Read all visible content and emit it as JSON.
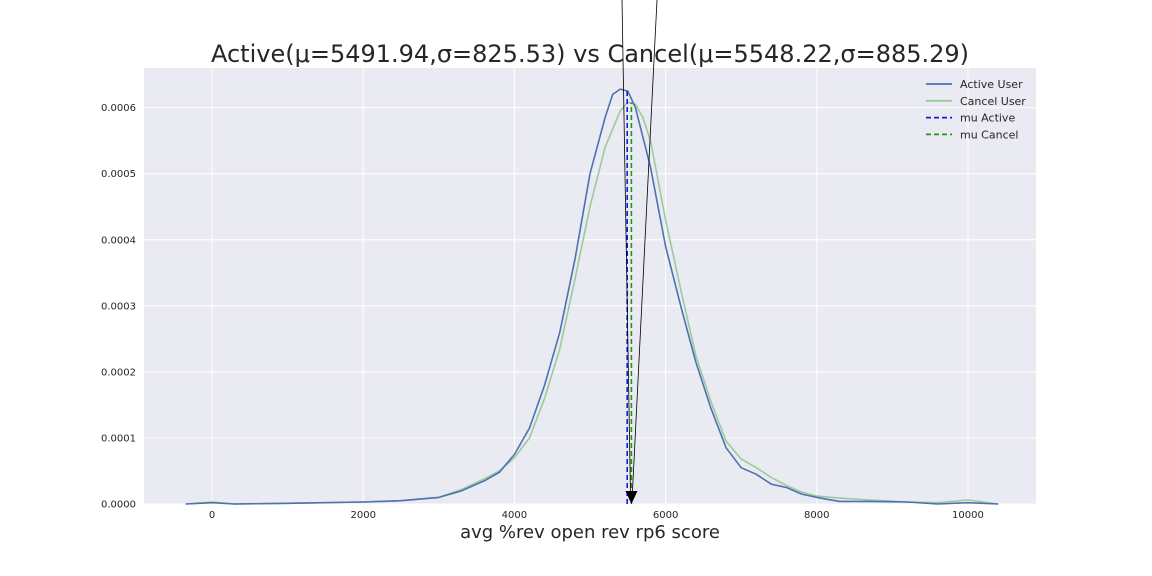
{
  "chart_data": {
    "type": "line",
    "title": "Active(μ=5491.94,σ=825.53) vs Cancel(μ=5548.22,σ=885.29)",
    "xlabel": "avg %rev open rev rp6 score",
    "ylabel": "",
    "xlim": [
      -900,
      10900
    ],
    "ylim": [
      0,
      0.00066
    ],
    "x_ticks": [
      0,
      2000,
      4000,
      6000,
      8000,
      10000
    ],
    "x_tick_labels": [
      "0",
      "2000",
      "4000",
      "6000",
      "8000",
      "10000"
    ],
    "y_ticks": [
      0,
      0.0001,
      0.0002,
      0.0003,
      0.0004,
      0.0005,
      0.0006
    ],
    "y_tick_labels": [
      "0.0000",
      "0.0001",
      "0.0002",
      "0.0003",
      "0.0004",
      "0.0005",
      "0.0006"
    ],
    "grid": true,
    "legend_position": "top-right",
    "series": [
      {
        "name": "Active User",
        "color": "#4c72b0",
        "style": "solid",
        "x": [
          -350,
          0,
          300,
          1000,
          2000,
          2500,
          3000,
          3300,
          3600,
          3800,
          4000,
          4200,
          4400,
          4600,
          4800,
          5000,
          5200,
          5300,
          5400,
          5500,
          5600,
          5800,
          6000,
          6200,
          6400,
          6600,
          6800,
          7000,
          7200,
          7400,
          7600,
          7800,
          8000,
          8300,
          8700,
          9200,
          9600,
          10000,
          10400
        ],
        "y": [
          0,
          2e-06,
          0,
          1e-06,
          3e-06,
          5e-06,
          1e-05,
          2e-05,
          3.5e-05,
          4.8e-05,
          7.5e-05,
          0.000115,
          0.00018,
          0.00026,
          0.00037,
          0.0005,
          0.000585,
          0.00062,
          0.000628,
          0.000625,
          0.0006,
          0.00051,
          0.00039,
          0.0003,
          0.000215,
          0.000145,
          8.5e-05,
          5.5e-05,
          4.5e-05,
          3e-05,
          2.5e-05,
          1.5e-05,
          1e-05,
          4e-06,
          4e-06,
          3e-06,
          0,
          2e-06,
          0
        ]
      },
      {
        "name": "Cancel User",
        "color": "#9bcb9b",
        "style": "solid",
        "x": [
          -350,
          0,
          300,
          1000,
          2000,
          2500,
          3000,
          3300,
          3600,
          3800,
          4000,
          4200,
          4400,
          4600,
          4800,
          5000,
          5200,
          5400,
          5500,
          5600,
          5700,
          5800,
          6000,
          6200,
          6400,
          6600,
          6800,
          7000,
          7200,
          7400,
          7600,
          7800,
          8000,
          8300,
          8700,
          9200,
          9600,
          10000,
          10400
        ],
        "y": [
          0,
          3e-06,
          0,
          1e-06,
          3e-06,
          5e-06,
          1e-05,
          2.2e-05,
          3.8e-05,
          5e-05,
          7e-05,
          0.0001,
          0.00016,
          0.000235,
          0.00034,
          0.00045,
          0.00054,
          0.000595,
          0.000608,
          0.000605,
          0.000585,
          0.00055,
          0.00043,
          0.000325,
          0.000225,
          0.000155,
          9.5e-05,
          6.8e-05,
          5.5e-05,
          4e-05,
          2.8e-05,
          1.8e-05,
          1.2e-05,
          9e-06,
          6e-06,
          3e-06,
          2e-06,
          6e-06,
          0
        ]
      },
      {
        "name": "mu Active",
        "color": "#1a1ae6",
        "style": "dashed",
        "x": [
          5491.94,
          5491.94
        ],
        "y": [
          0,
          0.000628
        ]
      },
      {
        "name": "mu Cancel",
        "color": "#1a9a1a",
        "style": "dashed",
        "x": [
          5548.22,
          5548.22
        ],
        "y": [
          0,
          0.000608
        ]
      }
    ],
    "annotation": {
      "type": "arrow",
      "x": 5548.22,
      "y": 0
    }
  }
}
